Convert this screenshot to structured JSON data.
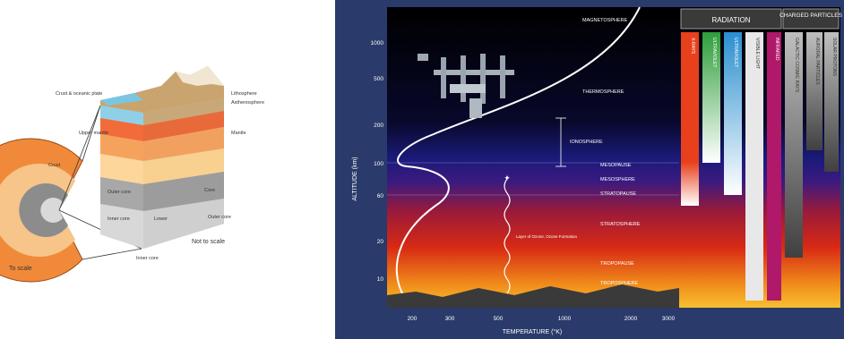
{
  "earth": {
    "labels": {
      "crust_oceanic": "Crust & oceanic plate",
      "lithosphere": "Lithosphere",
      "asthenosphere": "Asthenosphere",
      "mantle_outer": "Mantle",
      "upper_mantle": "Upper mantle",
      "crust": "Crust",
      "mantle": "Mantle",
      "outer_core": "Outer core",
      "inner_core": "Inner core",
      "core_label": "Core",
      "lower": "Lower",
      "outer_core_lbl": "Outer core",
      "inner_core_lbl": "Inner core",
      "not_to_scale": "Not to scale",
      "to_scale": "To scale"
    }
  },
  "atmosphere": {
    "radiation_header": "RADIATION",
    "charged_header": "CHARGED PARTICLES",
    "radiation_bands": [
      {
        "label": "X-RAYS",
        "color": "#e8401c"
      },
      {
        "label": "ULTRAVIOLET",
        "color": "#2e9d3a"
      },
      {
        "label": "ULTRAVIOLET",
        "color": "#2a8fcf"
      },
      {
        "label": "VISIBLE LIGHT",
        "color": "#e8e8e8"
      },
      {
        "label": "INFRARED",
        "color": "#b0186a"
      }
    ],
    "particle_bands": [
      {
        "label": "GALACTIC COSMIC RAYS",
        "color": "#8a8a8a"
      },
      {
        "label": "AURORAL PARTICLES",
        "color": "#bdbdbd"
      },
      {
        "label": "SOLAR PROTONS",
        "color": "#9e9e9e"
      }
    ],
    "layers": {
      "magnetosphere": "MAGNETOSPHERE",
      "thermosphere": "THERMOSPHERE",
      "ionosphere": "IONOSPHERE",
      "mesopause": "MESOPAUSE",
      "mesosphere": "MESOSPHERE",
      "stratopause": "STRATOPAUSE",
      "stratosphere": "STRATOSPHERE",
      "tropopause": "TROPOPAUSE",
      "troposphere": "TROPOSPHERE"
    },
    "ozone_note": "Layer of Ozone, Ozone Formation",
    "altitude_axis": {
      "label": "ALTITUDE (km)",
      "ticks": [
        "1000",
        "500",
        "200",
        "100",
        "60",
        "20",
        "10"
      ]
    },
    "temperature_axis": {
      "label": "TEMPERATURE (°K)",
      "ticks": [
        "200",
        "300",
        "500",
        "1000",
        "2000",
        "3000"
      ]
    }
  }
}
